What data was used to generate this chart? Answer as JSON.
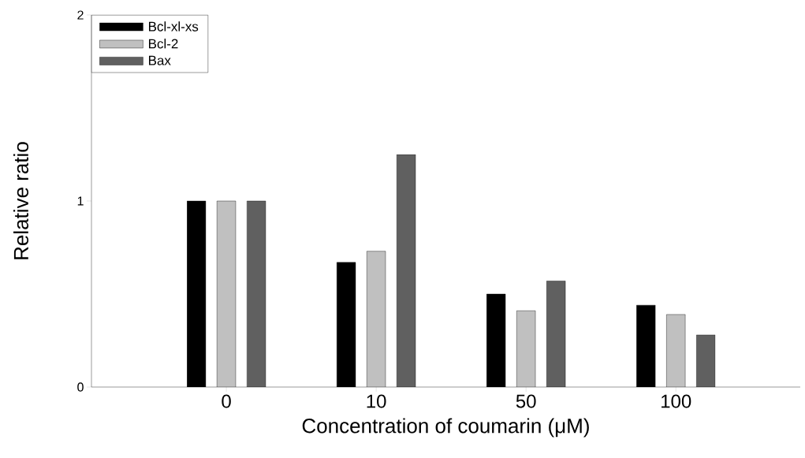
{
  "chart_data": {
    "type": "bar",
    "xlabel": "Concentration of coumarin (μM)",
    "ylabel": "Relative ratio",
    "categories": [
      "0",
      "10",
      "50",
      "100"
    ],
    "series": [
      {
        "name": "Bcl-xl-xs",
        "color": "#000000",
        "values": [
          1.0,
          0.67,
          0.5,
          0.44
        ]
      },
      {
        "name": "Bcl-2",
        "color": "#c0c0c0",
        "values": [
          1.0,
          0.73,
          0.41,
          0.39
        ]
      },
      {
        "name": "Bax",
        "color": "#606060",
        "values": [
          1.0,
          1.25,
          0.57,
          0.28
        ]
      }
    ],
    "ylim": [
      0,
      2
    ],
    "yticks": [
      0,
      1,
      2
    ],
    "grid": false,
    "legend": "top left"
  }
}
